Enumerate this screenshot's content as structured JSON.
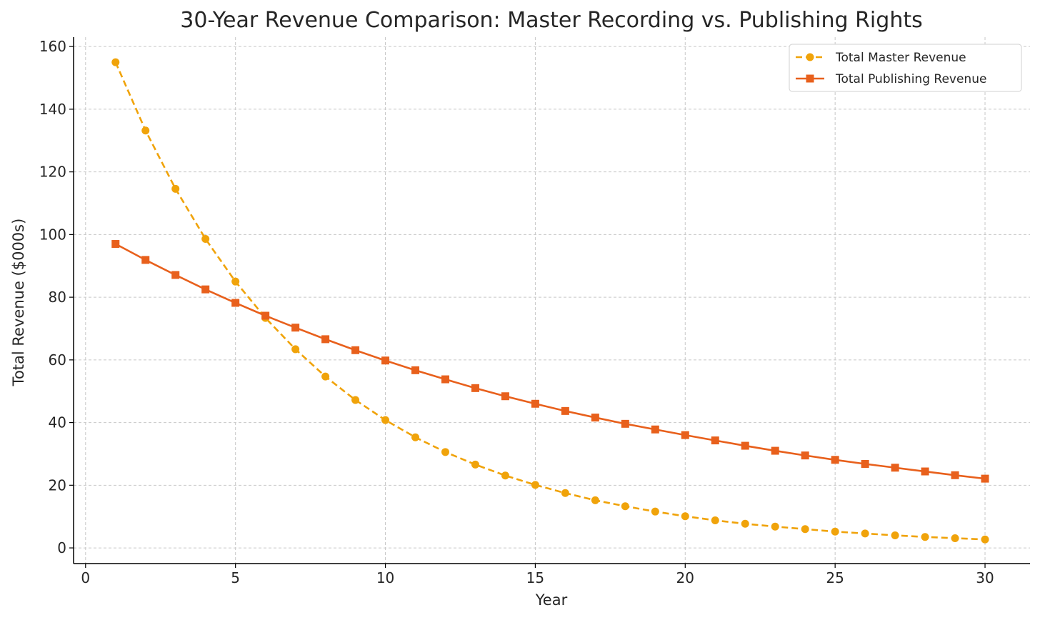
{
  "chart_data": {
    "type": "line",
    "title": "30-Year Revenue Comparison: Master Recording vs. Publishing Rights",
    "xlabel": "Year",
    "ylabel": "Total Revenue ($000s)",
    "xlim": [
      -0.4,
      31.5
    ],
    "ylim": [
      -5,
      163
    ],
    "x_ticks": [
      0,
      5,
      10,
      15,
      20,
      25,
      30
    ],
    "y_ticks": [
      0,
      20,
      40,
      60,
      80,
      100,
      120,
      140,
      160
    ],
    "grid": true,
    "legend_position": "top-right",
    "x": [
      1,
      2,
      3,
      4,
      5,
      6,
      7,
      8,
      9,
      10,
      11,
      12,
      13,
      14,
      15,
      16,
      17,
      18,
      19,
      20,
      21,
      22,
      23,
      24,
      25,
      26,
      27,
      28,
      29,
      30
    ],
    "series": [
      {
        "name": "Total Master Revenue",
        "color": "#f0a30a",
        "line_style": "dashed",
        "marker": "circle",
        "values": [
          155.0,
          133.2,
          114.6,
          98.6,
          85.0,
          73.4,
          63.4,
          54.7,
          47.2,
          40.8,
          35.3,
          30.6,
          26.6,
          23.1,
          20.1,
          17.5,
          15.2,
          13.3,
          11.6,
          10.1,
          8.8,
          7.7,
          6.8,
          6.0,
          5.2,
          4.6,
          4.0,
          3.5,
          3.1,
          2.7
        ]
      },
      {
        "name": "Total Publishing Revenue",
        "color": "#e8601c",
        "line_style": "solid",
        "marker": "square",
        "values": [
          97.0,
          91.9,
          87.1,
          82.5,
          78.2,
          74.1,
          70.3,
          66.6,
          63.1,
          59.8,
          56.7,
          53.8,
          51.0,
          48.4,
          46.0,
          43.7,
          41.6,
          39.6,
          37.8,
          36.0,
          34.3,
          32.6,
          31.0,
          29.5,
          28.1,
          26.8,
          25.6,
          24.4,
          23.2,
          22.1
        ]
      }
    ]
  }
}
